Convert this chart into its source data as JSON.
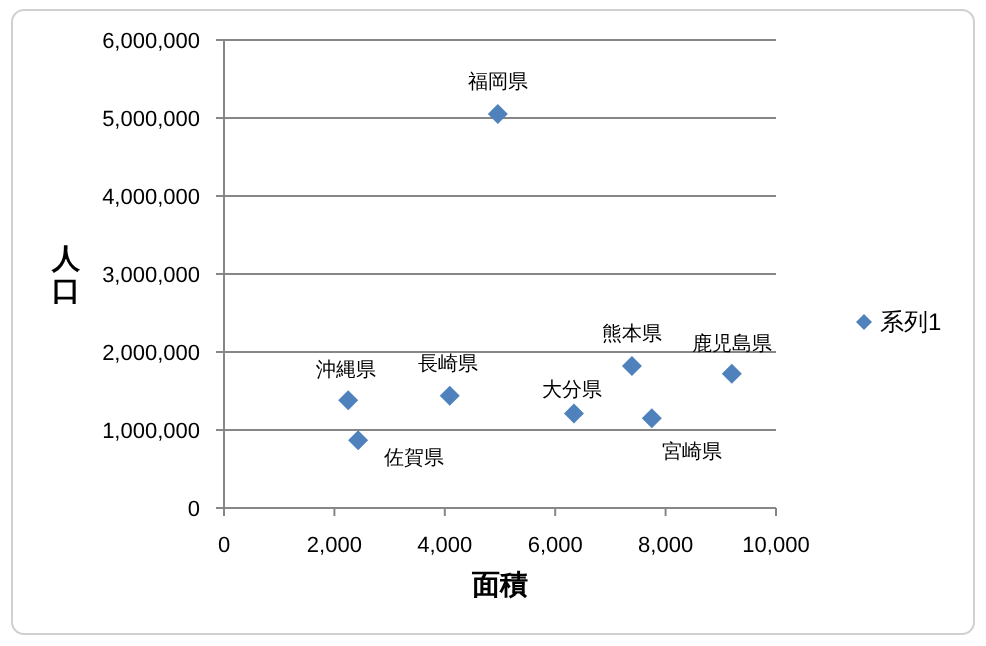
{
  "chart_data": {
    "type": "scatter",
    "xlabel": "面積",
    "ylabel": "人口",
    "series": [
      {
        "name": "系列1",
        "color": "#4f81bd",
        "x": [
          4960,
          2250,
          2430,
          4090,
          6340,
          7390,
          7750,
          9200
        ],
        "values": [
          5050000,
          1380000,
          870000,
          1440000,
          1210000,
          1820000,
          1150000,
          1720000
        ]
      }
    ],
    "annotations": [
      {
        "text": "福岡県",
        "x": 4960,
        "y": 5050000
      },
      {
        "text": "沖縄県",
        "x": 2250,
        "y": 1380000
      },
      {
        "text": "佐賀県",
        "x": 2430,
        "y": 870000
      },
      {
        "text": "長崎県",
        "x": 4090,
        "y": 1440000
      },
      {
        "text": "大分県",
        "x": 6340,
        "y": 1210000
      },
      {
        "text": "熊本県",
        "x": 7390,
        "y": 1820000
      },
      {
        "text": "宮崎県",
        "x": 7750,
        "y": 1150000
      },
      {
        "text": "鹿児島県",
        "x": 9200,
        "y": 1720000
      }
    ],
    "xlim": [
      0,
      10000
    ],
    "ylim": [
      0,
      6000000
    ],
    "xticks": [
      0,
      {
        "value": 2000,
        "label": "2,000"
      },
      {
        "value": 4000,
        "label": "4,000"
      },
      {
        "value": 6000,
        "label": "6,000"
      },
      {
        "value": 8000,
        "label": "8,000"
      },
      {
        "value": 10000,
        "label": "10,000"
      }
    ],
    "yticks": [
      0,
      {
        "value": 1000000,
        "label": "1,000,000"
      },
      {
        "value": 2000000,
        "label": "2,000,000"
      },
      {
        "value": 3000000,
        "label": "3,000,000"
      },
      {
        "value": 4000000,
        "label": "4,000,000"
      },
      {
        "value": 5000000,
        "label": "5,000,000"
      },
      {
        "value": 6000000,
        "label": "6,000,000"
      }
    ],
    "grid": "y",
    "marker": "diamond",
    "legend": "right"
  }
}
